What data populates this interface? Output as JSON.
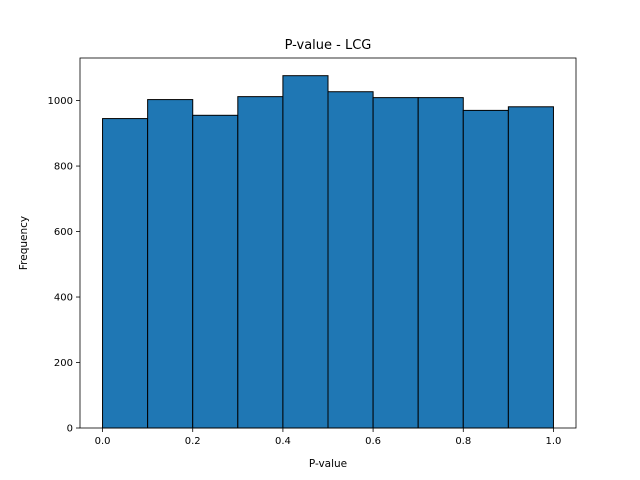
{
  "chart_data": {
    "type": "bar",
    "title": "P-value - LCG",
    "xlabel": "P-value",
    "ylabel": "Frequency",
    "bins": [
      {
        "x0": 0.0,
        "x1": 0.1,
        "value": 945
      },
      {
        "x0": 0.1,
        "x1": 0.2,
        "value": 1003
      },
      {
        "x0": 0.2,
        "x1": 0.3,
        "value": 955
      },
      {
        "x0": 0.3,
        "x1": 0.4,
        "value": 1012
      },
      {
        "x0": 0.4,
        "x1": 0.5,
        "value": 1076
      },
      {
        "x0": 0.5,
        "x1": 0.6,
        "value": 1027
      },
      {
        "x0": 0.6,
        "x1": 0.7,
        "value": 1009
      },
      {
        "x0": 0.7,
        "x1": 0.8,
        "value": 1009
      },
      {
        "x0": 0.8,
        "x1": 0.9,
        "value": 970
      },
      {
        "x0": 0.9,
        "x1": 1.0,
        "value": 981
      }
    ],
    "xlim": [
      -0.05,
      1.05
    ],
    "ylim": [
      0,
      1130
    ],
    "xticks": [
      "0.0",
      "0.2",
      "0.4",
      "0.6",
      "0.8",
      "1.0"
    ],
    "yticks": [
      "0",
      "200",
      "400",
      "600",
      "800",
      "1000"
    ],
    "grid": false,
    "bar_color": "#1f77b4",
    "edge_color": "#000000"
  }
}
